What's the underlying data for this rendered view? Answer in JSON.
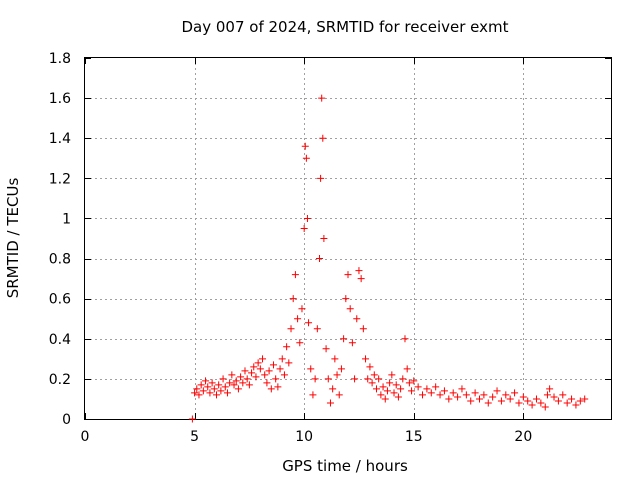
{
  "chart_data": {
    "type": "scatter",
    "title": "Day 007 of 2024, SRMTID for receiver exmt",
    "xlabel": "GPS time / hours",
    "ylabel": "SRMTID / TECUs",
    "xlim": [
      0,
      24
    ],
    "ylim": [
      0,
      1.8
    ],
    "x_ticks": [
      0,
      5,
      10,
      15,
      20
    ],
    "x_tick_labels": [
      "0",
      "5",
      "10",
      "15",
      "20"
    ],
    "y_ticks": [
      0,
      0.2,
      0.4,
      0.6,
      0.8,
      1.0,
      1.2,
      1.4,
      1.6,
      1.8
    ],
    "y_tick_labels": [
      "0",
      "0.2",
      "0.4",
      "0.6",
      "0.8",
      "1",
      "1.2",
      "1.4",
      "1.6",
      "1.8"
    ],
    "grid": true,
    "marker": "+",
    "series": [
      {
        "name": "SRMTID",
        "color": "#ff0000",
        "x": [
          4.9,
          5.0,
          5.1,
          5.2,
          5.3,
          5.4,
          5.5,
          5.6,
          5.7,
          5.8,
          5.9,
          6.0,
          6.1,
          6.2,
          6.3,
          6.4,
          6.5,
          6.6,
          6.7,
          6.8,
          6.9,
          7.0,
          7.1,
          7.2,
          7.3,
          7.4,
          7.5,
          7.6,
          7.7,
          7.8,
          7.9,
          8.0,
          8.1,
          8.2,
          8.3,
          8.4,
          8.5,
          8.6,
          8.7,
          8.8,
          8.9,
          9.0,
          9.1,
          9.2,
          9.3,
          9.4,
          9.5,
          9.6,
          9.7,
          9.8,
          9.9,
          10.0,
          10.05,
          10.1,
          10.15,
          10.2,
          10.3,
          10.4,
          10.5,
          10.6,
          10.7,
          10.75,
          10.8,
          10.85,
          10.9,
          11.0,
          11.1,
          11.2,
          11.3,
          11.4,
          11.5,
          11.6,
          11.7,
          11.8,
          11.9,
          12.0,
          12.1,
          12.2,
          12.3,
          12.4,
          12.5,
          12.6,
          12.7,
          12.8,
          12.9,
          13.0,
          13.1,
          13.2,
          13.3,
          13.4,
          13.5,
          13.6,
          13.7,
          13.8,
          13.9,
          14.0,
          14.1,
          14.2,
          14.3,
          14.4,
          14.5,
          14.6,
          14.7,
          14.8,
          14.9,
          15.0,
          15.2,
          15.4,
          15.6,
          15.8,
          16.0,
          16.2,
          16.4,
          16.6,
          16.8,
          17.0,
          17.2,
          17.4,
          17.6,
          17.8,
          18.0,
          18.2,
          18.4,
          18.6,
          18.8,
          19.0,
          19.2,
          19.4,
          19.6,
          19.8,
          20.0,
          20.2,
          20.4,
          20.6,
          20.8,
          21.0,
          21.1,
          21.2,
          21.4,
          21.6,
          21.8,
          22.0,
          22.2,
          22.4,
          22.6,
          22.8
        ],
        "y": [
          0.0,
          0.13,
          0.15,
          0.12,
          0.17,
          0.14,
          0.19,
          0.16,
          0.13,
          0.18,
          0.15,
          0.12,
          0.17,
          0.14,
          0.2,
          0.16,
          0.13,
          0.18,
          0.22,
          0.17,
          0.19,
          0.15,
          0.21,
          0.18,
          0.24,
          0.2,
          0.17,
          0.23,
          0.26,
          0.21,
          0.28,
          0.25,
          0.3,
          0.22,
          0.18,
          0.24,
          0.15,
          0.27,
          0.2,
          0.16,
          0.25,
          0.3,
          0.22,
          0.36,
          0.28,
          0.45,
          0.6,
          0.72,
          0.5,
          0.38,
          0.55,
          0.95,
          1.36,
          1.3,
          1.0,
          0.48,
          0.25,
          0.12,
          0.2,
          0.45,
          0.8,
          1.2,
          1.6,
          1.4,
          0.9,
          0.35,
          0.2,
          0.08,
          0.15,
          0.3,
          0.22,
          0.12,
          0.25,
          0.4,
          0.6,
          0.72,
          0.55,
          0.38,
          0.2,
          0.5,
          0.74,
          0.7,
          0.45,
          0.3,
          0.2,
          0.26,
          0.18,
          0.22,
          0.15,
          0.2,
          0.12,
          0.16,
          0.1,
          0.14,
          0.18,
          0.22,
          0.13,
          0.17,
          0.11,
          0.15,
          0.2,
          0.4,
          0.25,
          0.18,
          0.14,
          0.19,
          0.16,
          0.12,
          0.15,
          0.13,
          0.16,
          0.12,
          0.14,
          0.1,
          0.13,
          0.11,
          0.15,
          0.12,
          0.09,
          0.13,
          0.1,
          0.12,
          0.08,
          0.11,
          0.14,
          0.09,
          0.12,
          0.1,
          0.13,
          0.08,
          0.11,
          0.09,
          0.07,
          0.1,
          0.08,
          0.06,
          0.12,
          0.15,
          0.11,
          0.09,
          0.12,
          0.08,
          0.1,
          0.07,
          0.09,
          0.1
        ]
      }
    ]
  }
}
